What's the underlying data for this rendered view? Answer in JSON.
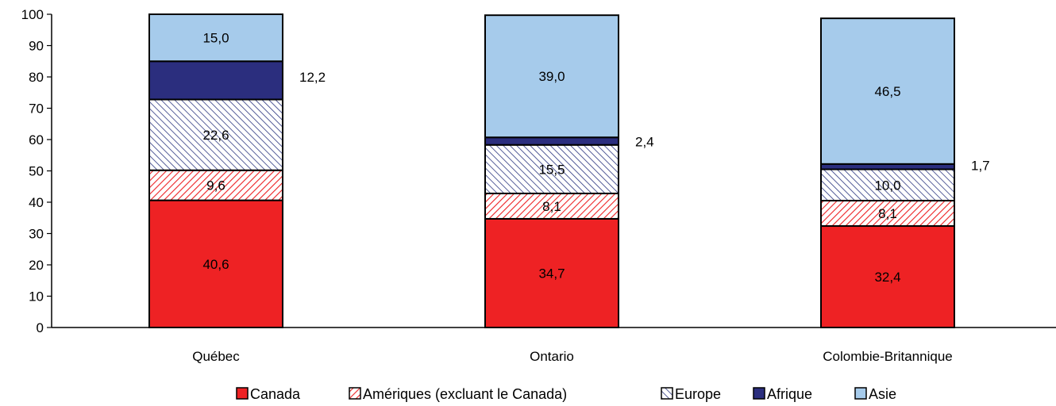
{
  "chart_data": {
    "type": "bar",
    "stacked": true,
    "title": "",
    "xlabel": "",
    "ylabel": "",
    "ylim": [
      0,
      100
    ],
    "yticks": [
      0,
      10,
      20,
      30,
      40,
      50,
      60,
      70,
      80,
      90,
      100
    ],
    "categories": [
      "Québec",
      "Ontario",
      "Colombie-Britannique"
    ],
    "series": [
      {
        "name": "Canada",
        "values": [
          40.6,
          34.7,
          32.4
        ],
        "labels": [
          "40,6",
          "34,7",
          "32,4"
        ],
        "color": "#ee2224",
        "pattern": "solid"
      },
      {
        "name": "Amériques (excluant le Canada)",
        "values": [
          9.6,
          8.1,
          8.1
        ],
        "labels": [
          "9,6",
          "8,1",
          "8,1"
        ],
        "color": "#ee2224",
        "pattern": "hatch-red"
      },
      {
        "name": "Europe",
        "values": [
          22.6,
          15.5,
          10.0
        ],
        "labels": [
          "22,6",
          "15,5",
          "10,0"
        ],
        "color": "#2b3680",
        "pattern": "hatch-blue"
      },
      {
        "name": "Afrique",
        "values": [
          12.2,
          2.4,
          1.7
        ],
        "labels": [
          "12,2",
          "2,4",
          "1,7"
        ],
        "color": "#2b2e7e",
        "pattern": "solid"
      },
      {
        "name": "Asie",
        "values": [
          15.0,
          39.0,
          46.5
        ],
        "labels": [
          "15,0",
          "39,0",
          "46,5"
        ],
        "color": "#a6cbeb",
        "pattern": "solid"
      }
    ],
    "legend_position": "bottom",
    "grid": false
  }
}
